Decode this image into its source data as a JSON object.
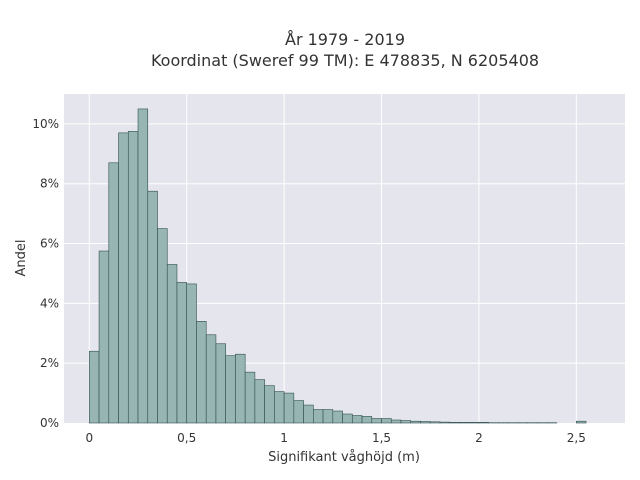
{
  "chart_data": {
    "type": "bar",
    "title": "År 1979 - 2019",
    "subtitle": "Koordinat (Sweref 99 TM): E 478835, N 6205408",
    "xlabel": "Signifikant våghöjd (m)",
    "ylabel": "Andel",
    "xlim": [
      -0.13,
      2.75
    ],
    "ylim": [
      0,
      11
    ],
    "x_ticks": [
      {
        "value": 0,
        "label": "0"
      },
      {
        "value": 0.5,
        "label": "0,5"
      },
      {
        "value": 1,
        "label": "1"
      },
      {
        "value": 1.5,
        "label": "1,5"
      },
      {
        "value": 2,
        "label": "2"
      },
      {
        "value": 2.5,
        "label": "2,5"
      }
    ],
    "y_ticks": [
      {
        "value": 0,
        "label": "0%"
      },
      {
        "value": 2,
        "label": "2%"
      },
      {
        "value": 4,
        "label": "4%"
      },
      {
        "value": 6,
        "label": "6%"
      },
      {
        "value": 8,
        "label": "8%"
      },
      {
        "value": 10,
        "label": "10%"
      }
    ],
    "grid": true,
    "bin_width": 0.05,
    "bin_starts": [
      0.0,
      0.05,
      0.1,
      0.15,
      0.2,
      0.25,
      0.3,
      0.35,
      0.4,
      0.45,
      0.5,
      0.55,
      0.6,
      0.65,
      0.7,
      0.75,
      0.8,
      0.85,
      0.9,
      0.95,
      1.0,
      1.05,
      1.1,
      1.15,
      1.2,
      1.25,
      1.3,
      1.35,
      1.4,
      1.45,
      1.5,
      1.55,
      1.6,
      1.65,
      1.7,
      1.75,
      1.8,
      1.85,
      1.9,
      1.95,
      2.0,
      2.05,
      2.1,
      2.15,
      2.2,
      2.25,
      2.3,
      2.35,
      2.4,
      2.45,
      2.5
    ],
    "values": [
      2.4,
      5.75,
      8.7,
      9.7,
      9.75,
      10.5,
      7.75,
      6.5,
      5.3,
      4.7,
      4.65,
      3.4,
      2.95,
      2.65,
      2.25,
      2.3,
      1.7,
      1.45,
      1.25,
      1.05,
      1.0,
      0.75,
      0.6,
      0.45,
      0.45,
      0.4,
      0.3,
      0.25,
      0.22,
      0.15,
      0.15,
      0.1,
      0.08,
      0.06,
      0.05,
      0.04,
      0.03,
      0.02,
      0.02,
      0.02,
      0.02,
      0.01,
      0.01,
      0.01,
      0.01,
      0.01,
      0.01,
      0.01,
      0.0,
      0.0,
      0.06
    ],
    "colors": {
      "bar_fill": "#97b5b3",
      "bar_stroke": "#2f4f4f",
      "plot_background": "#e5e5ee",
      "grid": "#ffffff"
    }
  }
}
